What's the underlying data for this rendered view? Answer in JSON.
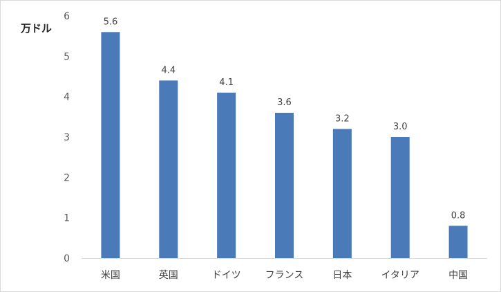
{
  "chart_data": {
    "type": "bar",
    "unit_label": "万ドル",
    "categories": [
      "米国",
      "英国",
      "ドイツ",
      "フランス",
      "日本",
      "イタリア",
      "中国"
    ],
    "values": [
      5.6,
      4.4,
      4.1,
      3.6,
      3.2,
      3.0,
      0.8
    ],
    "data_labels": [
      "5.6",
      "4.4",
      "4.1",
      "3.6",
      "3.2",
      "3.0",
      "0.8"
    ],
    "yticks": [
      "0",
      "1",
      "2",
      "3",
      "4",
      "5",
      "6"
    ],
    "ylim": [
      0,
      6
    ],
    "bar_color": "#4a7ab8",
    "grid": false
  }
}
